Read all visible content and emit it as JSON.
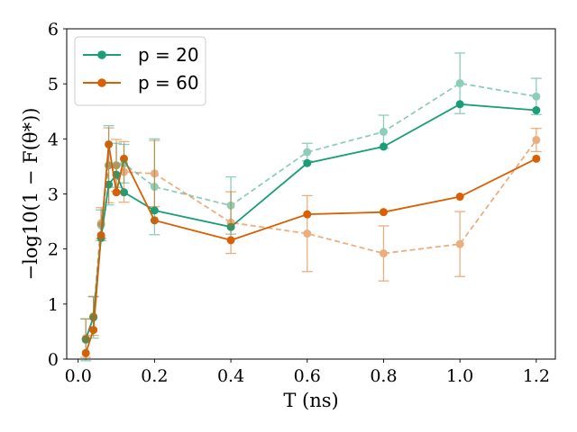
{
  "chart_data": {
    "type": "line",
    "xlabel": "T (ns)",
    "ylabel": "−log10(1 − F(θ*))",
    "xlim": [
      -0.03,
      1.25
    ],
    "ylim": [
      0,
      6
    ],
    "x_ticks": [
      0.0,
      0.2,
      0.4,
      0.6,
      0.8,
      1.0,
      1.2
    ],
    "x_tick_labels": [
      "0.0",
      "0.2",
      "0.4",
      "0.6",
      "0.8",
      "1.0",
      "1.2"
    ],
    "y_ticks": [
      0,
      1,
      2,
      3,
      4,
      5,
      6
    ],
    "y_tick_labels": [
      "0",
      "1",
      "2",
      "3",
      "4",
      "5",
      "6"
    ],
    "grid": false,
    "legend_position": "top-left",
    "series": [
      {
        "name": "p = 20",
        "color": "#1b9e77",
        "style": "solid",
        "markers": "filled circles",
        "points": [
          [
            0.02,
            0.36
          ],
          [
            0.04,
            0.76
          ],
          [
            0.06,
            2.2
          ],
          [
            0.08,
            3.17
          ],
          [
            0.1,
            3.35
          ],
          [
            0.12,
            3.03
          ],
          [
            0.2,
            2.7
          ],
          [
            0.4,
            2.4
          ],
          [
            0.6,
            3.56
          ],
          [
            0.8,
            3.86
          ],
          [
            1.0,
            4.63
          ],
          [
            1.2,
            4.52
          ]
        ]
      },
      {
        "name": "p = 60",
        "color": "#d95f02",
        "style": "solid",
        "markers": "filled circles",
        "points": [
          [
            0.02,
            0.11
          ],
          [
            0.04,
            0.53
          ],
          [
            0.06,
            2.25
          ],
          [
            0.08,
            3.9
          ],
          [
            0.1,
            3.03
          ],
          [
            0.12,
            3.64
          ],
          [
            0.2,
            2.52
          ],
          [
            0.4,
            2.16
          ],
          [
            0.6,
            2.63
          ],
          [
            0.8,
            2.67
          ],
          [
            1.0,
            2.95
          ],
          [
            1.2,
            3.64
          ]
        ]
      },
      {
        "color": "#1b9e77",
        "style": "dashed",
        "opacity": 0.5,
        "markers": "circles with error bars",
        "points": [
          [
            0.02,
            0.35,
            0.38
          ],
          [
            0.04,
            0.76,
            0.38
          ],
          [
            0.06,
            2.43,
            0.28
          ],
          [
            0.08,
            3.52,
            0.72
          ],
          [
            0.1,
            3.52,
            0.4
          ],
          [
            0.12,
            3.55,
            0.35
          ],
          [
            0.2,
            3.13,
            0.87
          ],
          [
            0.4,
            2.79,
            0.52
          ],
          [
            0.6,
            3.76,
            0.16
          ],
          [
            0.8,
            4.13,
            0.3
          ],
          [
            1.0,
            5.01,
            0.55
          ],
          [
            1.2,
            4.77,
            0.33
          ]
        ]
      },
      {
        "color": "#d95f02",
        "style": "dashed",
        "opacity": 0.5,
        "markers": "circles with error bars",
        "points": [
          [
            0.02,
            0.38,
            0.35
          ],
          [
            0.04,
            0.78,
            0.35
          ],
          [
            0.06,
            2.47,
            0.28
          ],
          [
            0.08,
            3.52,
            0.68
          ],
          [
            0.1,
            3.52,
            0.47
          ],
          [
            0.12,
            3.4,
            0.55
          ],
          [
            0.2,
            3.37,
            0.6
          ],
          [
            0.4,
            2.48,
            0.56
          ],
          [
            0.6,
            2.28,
            0.69
          ],
          [
            0.8,
            1.92,
            0.5
          ],
          [
            1.0,
            2.09,
            0.59
          ],
          [
            1.2,
            3.98,
            0.21
          ]
        ]
      }
    ]
  }
}
